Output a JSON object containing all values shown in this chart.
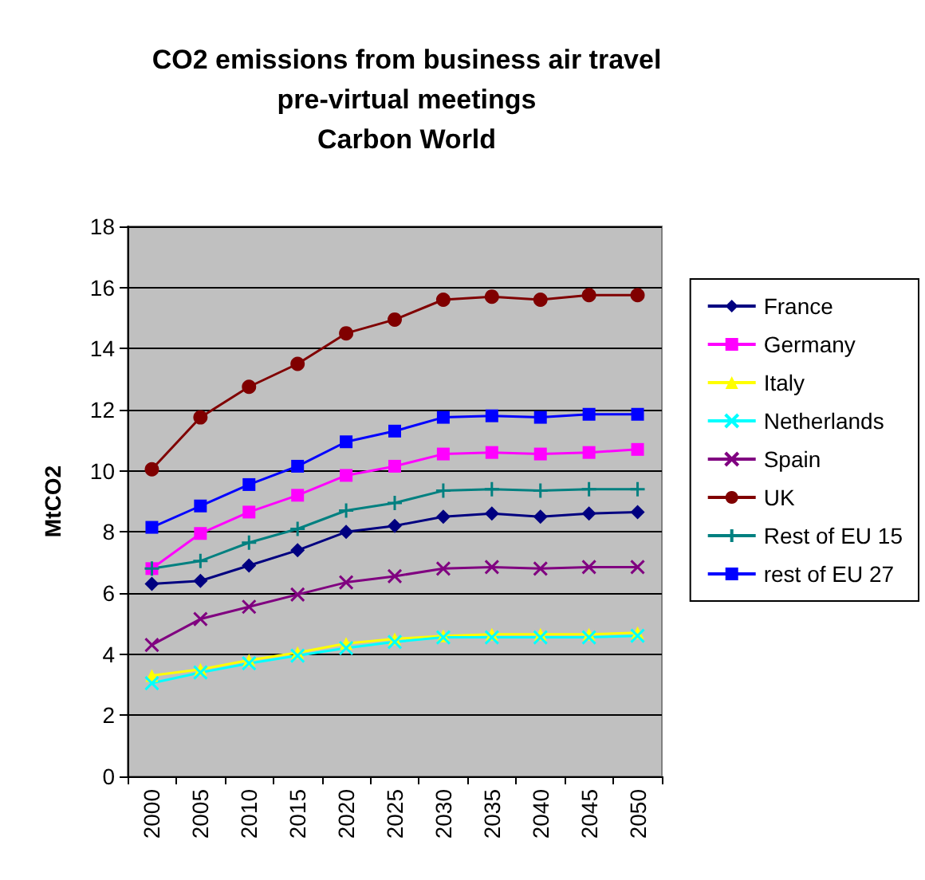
{
  "chart_data": {
    "type": "line",
    "title": "CO2 emissions from business air travel\npre-virtual meetings\nCarbon World",
    "ylabel": "MtCO2",
    "categories": [
      "2000",
      "2005",
      "2010",
      "2015",
      "2020",
      "2025",
      "2030",
      "2035",
      "2040",
      "2045",
      "2050"
    ],
    "ylim": [
      0,
      18
    ],
    "yticks": [
      0,
      2,
      4,
      6,
      8,
      10,
      12,
      14,
      16,
      18
    ],
    "grid": "y",
    "legend": "right",
    "series": [
      {
        "name": "France",
        "color": "#000080",
        "marker": "diamond",
        "values": [
          6.3,
          6.4,
          6.9,
          7.4,
          8.0,
          8.2,
          8.5,
          8.6,
          8.5,
          8.6,
          8.65
        ]
      },
      {
        "name": "Germany",
        "color": "#ff00ff",
        "marker": "square",
        "values": [
          6.8,
          7.95,
          8.65,
          9.2,
          9.85,
          10.15,
          10.55,
          10.6,
          10.55,
          10.6,
          10.7
        ]
      },
      {
        "name": "Italy",
        "color": "#ffff00",
        "marker": "triangle",
        "values": [
          3.3,
          3.5,
          3.8,
          4.05,
          4.35,
          4.5,
          4.6,
          4.65,
          4.65,
          4.65,
          4.7
        ]
      },
      {
        "name": "Netherlands",
        "color": "#00ffff",
        "marker": "cross",
        "values": [
          3.05,
          3.4,
          3.7,
          3.95,
          4.2,
          4.4,
          4.55,
          4.55,
          4.55,
          4.55,
          4.6
        ]
      },
      {
        "name": "Spain",
        "color": "#800080",
        "marker": "cross",
        "values": [
          4.3,
          5.15,
          5.55,
          5.95,
          6.35,
          6.55,
          6.8,
          6.85,
          6.8,
          6.85,
          6.85
        ]
      },
      {
        "name": "UK",
        "color": "#800000",
        "marker": "circle",
        "values": [
          10.05,
          11.75,
          12.75,
          13.5,
          14.5,
          14.95,
          15.6,
          15.7,
          15.6,
          15.75,
          15.75
        ]
      },
      {
        "name": "Rest of EU 15",
        "color": "#008080",
        "marker": "plus",
        "values": [
          6.8,
          7.05,
          7.65,
          8.1,
          8.7,
          8.95,
          9.35,
          9.4,
          9.35,
          9.4,
          9.4
        ]
      },
      {
        "name": "rest of EU 27",
        "color": "#0000ff",
        "marker": "square",
        "values": [
          8.15,
          8.85,
          9.55,
          10.15,
          10.95,
          11.3,
          11.75,
          11.8,
          11.75,
          11.85,
          11.85
        ]
      }
    ]
  }
}
